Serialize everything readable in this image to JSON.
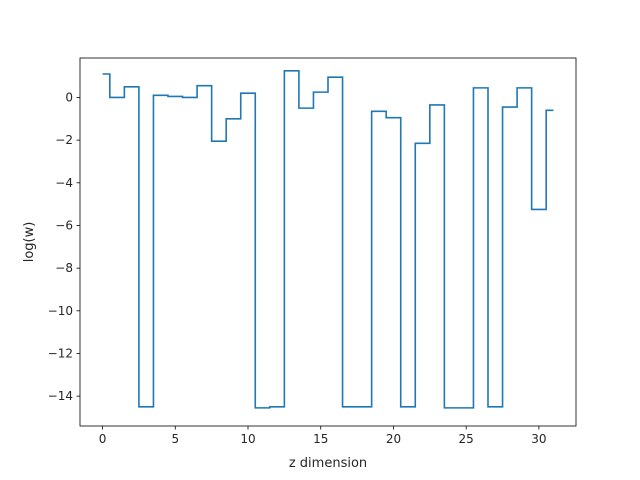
{
  "chart_data": {
    "type": "line",
    "drawstyle": "steps-mid",
    "xlabel": "z dimension",
    "ylabel": "log(w)",
    "xlim": [
      -1.55,
      32.55
    ],
    "ylim": [
      -15.4,
      1.85
    ],
    "xticks": [
      0,
      5,
      10,
      15,
      20,
      25,
      30
    ],
    "yticks": [
      0,
      -2,
      -4,
      -6,
      -8,
      -10,
      -12,
      -14
    ],
    "grid": false,
    "legend": "none",
    "series": [
      {
        "color": "#1f77b4",
        "x": [
          0,
          1,
          2,
          3,
          4,
          5,
          6,
          7,
          8,
          9,
          10,
          11,
          12,
          13,
          14,
          15,
          16,
          17,
          18,
          19,
          20,
          21,
          22,
          23,
          24,
          25,
          26,
          27,
          28,
          29,
          30,
          31
        ],
        "y": [
          1.1,
          0.0,
          0.5,
          -14.5,
          0.1,
          0.05,
          0.0,
          0.55,
          -2.05,
          -1.0,
          0.2,
          -14.55,
          -14.5,
          1.25,
          -0.5,
          0.25,
          0.95,
          -14.5,
          -14.5,
          -0.65,
          -0.95,
          -14.5,
          -2.15,
          -0.35,
          -14.55,
          -14.55,
          0.45,
          -14.5,
          -0.45,
          0.45,
          -5.25,
          -0.6
        ]
      }
    ]
  }
}
